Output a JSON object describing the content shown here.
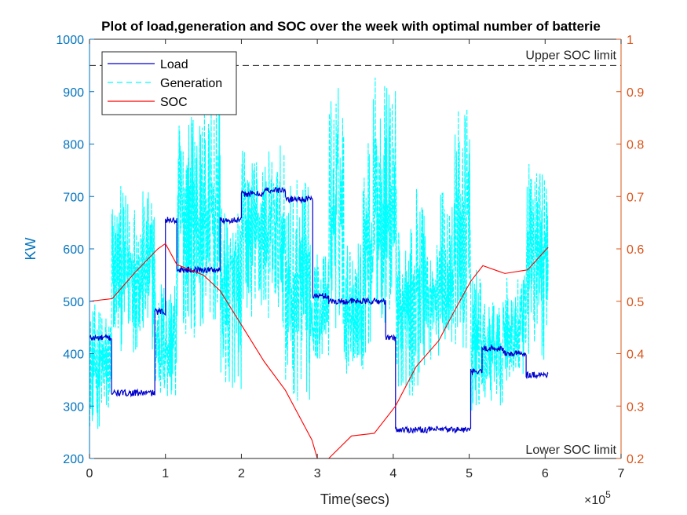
{
  "chart_data": {
    "type": "line",
    "title": "Plot of load,generation and SOC over the week with optimal number of batterie",
    "xlabel": "Time(secs)",
    "x_exponent": "×10",
    "x_exponent_power": "5",
    "xlim": [
      0,
      7
    ],
    "x_ticks": [
      0,
      1,
      2,
      3,
      4,
      5,
      6,
      7
    ],
    "ylabel_left": "KW",
    "ylim_left": [
      200,
      1000
    ],
    "y_ticks_left": [
      200,
      300,
      400,
      500,
      600,
      700,
      800,
      900,
      1000
    ],
    "ylim_right": [
      0.2,
      1
    ],
    "y_ticks_right": [
      0.2,
      0.3,
      0.4,
      0.5,
      0.6,
      0.7,
      0.8,
      0.9,
      1
    ],
    "legend_position": "top-left",
    "colors": {
      "left_axis": "#0072BD",
      "right_axis": "#D95319",
      "load": "#0000CD",
      "generation": "#00FFFF",
      "soc": "#FF0000",
      "limit": "#262626"
    },
    "series": [
      {
        "name": "Load",
        "axis": "left",
        "style": "solid",
        "x": [
          0,
          0.29,
          0.29,
          0.86,
          0.86,
          1.0,
          1.0,
          1.15,
          1.15,
          1.72,
          1.72,
          2.0,
          2.0,
          2.3,
          2.3,
          2.58,
          2.58,
          2.58,
          2.58,
          2.94,
          2.94,
          3.15,
          3.15,
          3.9,
          3.9,
          4.03,
          4.03,
          5.02,
          5.02,
          5.17,
          5.17,
          5.45,
          5.45,
          5.75,
          5.75,
          6.04
        ],
        "y": [
          430,
          430,
          325,
          325,
          480,
          480,
          655,
          655,
          560,
          560,
          655,
          655,
          705,
          705,
          712,
          712,
          560,
          560,
          695,
          695,
          510,
          510,
          500,
          500,
          430,
          430,
          255,
          255,
          365,
          365,
          410,
          410,
          400,
          400,
          360,
          360
        ]
      },
      {
        "name": "Generation",
        "axis": "left",
        "style": "dashed",
        "x": [
          0,
          0.29,
          0.29,
          0.86,
          0.86,
          1.15,
          1.15,
          1.72,
          1.72,
          2.0,
          2.0,
          2.58,
          2.58,
          2.92,
          2.92,
          3.15,
          3.15,
          3.35,
          3.35,
          3.6,
          3.6,
          3.72,
          3.72,
          4.04,
          4.04,
          4.3,
          4.3,
          4.45,
          4.45,
          4.6,
          4.6,
          4.8,
          4.8,
          5.02,
          5.02,
          5.17,
          5.17,
          5.45,
          5.45,
          5.75,
          5.75,
          6.04
        ],
        "y_min": [
          250,
          250,
          400,
          400,
          290,
          290,
          430,
          430,
          320,
          320,
          450,
          450,
          300,
          300,
          380,
          380,
          430,
          430,
          360,
          360,
          380,
          380,
          440,
          440,
          310,
          310,
          330,
          330,
          380,
          380,
          390,
          390,
          400,
          400,
          255,
          255,
          300,
          300,
          330,
          330,
          380,
          380
        ],
        "y_max": [
          500,
          500,
          720,
          720,
          560,
          560,
          880,
          880,
          690,
          690,
          800,
          800,
          740,
          740,
          600,
          600,
          930,
          930,
          630,
          630,
          820,
          820,
          940,
          940,
          640,
          640,
          760,
          760,
          620,
          620,
          730,
          730,
          870,
          870,
          580,
          580,
          500,
          500,
          550,
          550,
          790,
          790
        ]
      },
      {
        "name": "SOC",
        "axis": "right",
        "style": "solid",
        "x": [
          0,
          0.3,
          0.6,
          0.9,
          1.0,
          1.15,
          1.5,
          1.72,
          2.0,
          2.3,
          2.58,
          2.93,
          3.0,
          3.15,
          3.45,
          3.75,
          4.03,
          4.3,
          4.6,
          4.8,
          5.02,
          5.18,
          5.47,
          5.77,
          6.04
        ],
        "y": [
          0.5,
          0.505,
          0.555,
          0.6,
          0.61,
          0.57,
          0.55,
          0.52,
          0.455,
          0.385,
          0.33,
          0.235,
          0.2,
          0.2,
          0.243,
          0.248,
          0.3,
          0.375,
          0.425,
          0.48,
          0.538,
          0.568,
          0.553,
          0.56,
          0.603
        ]
      }
    ],
    "annotations": [
      {
        "text": "Upper SOC limit",
        "y": 0.95
      },
      {
        "text": "Lower SOC limit",
        "y": 0.2
      }
    ]
  }
}
